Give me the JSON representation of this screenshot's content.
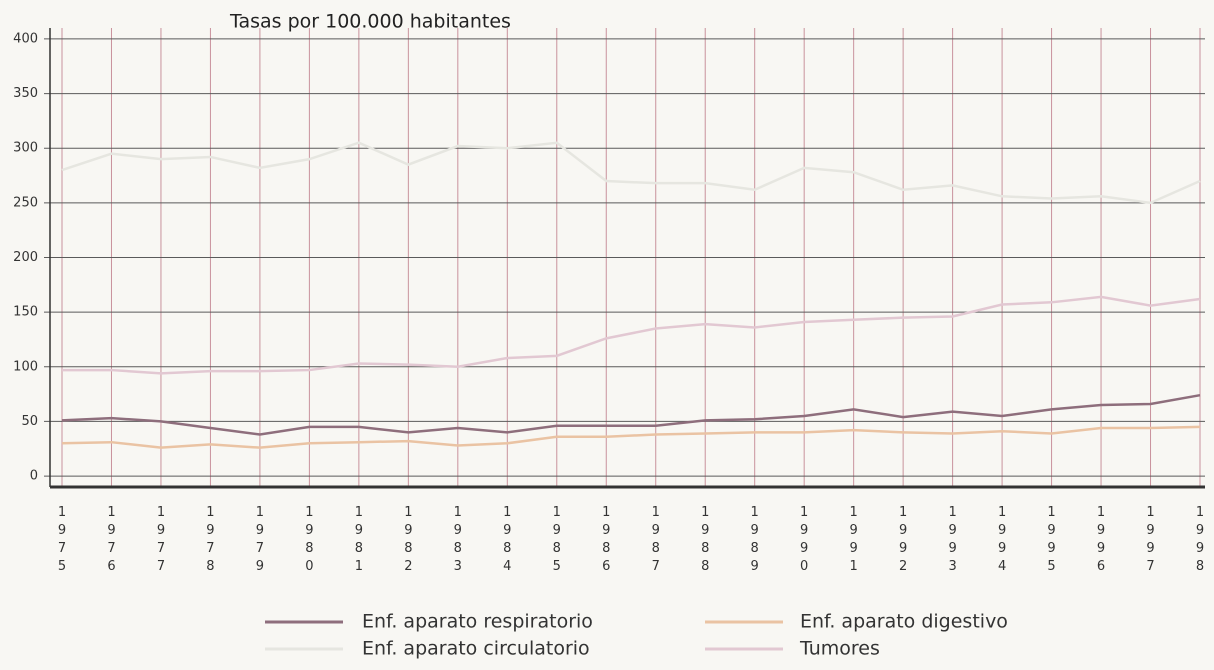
{
  "chart_data": {
    "type": "line",
    "title": "Tasas por 100.000 habitantes",
    "categories": [
      "1975",
      "1976",
      "1977",
      "1978",
      "1979",
      "1980",
      "1981",
      "1982",
      "1983",
      "1984",
      "1985",
      "1986",
      "1987",
      "1988",
      "1989",
      "1990",
      "1991",
      "1992",
      "1993",
      "1994",
      "1995",
      "1996",
      "1997",
      "1998"
    ],
    "series": [
      {
        "name": "Enf. aparato respiratorio",
        "color": "#8e6e7c",
        "values": [
          51,
          53,
          50,
          44,
          38,
          45,
          45,
          40,
          44,
          40,
          46,
          46,
          46,
          51,
          52,
          55,
          61,
          54,
          59,
          55,
          61,
          65,
          66,
          74
        ]
      },
      {
        "name": "Enf. aparato circulatorio",
        "color": "#e6e6e0",
        "values": [
          280,
          295,
          290,
          292,
          282,
          290,
          305,
          285,
          302,
          300,
          305,
          270,
          268,
          268,
          262,
          282,
          278,
          262,
          266,
          256,
          254,
          256,
          250,
          270
        ]
      },
      {
        "name": "Enf. aparato digestivo",
        "color": "#eac3a3",
        "values": [
          30,
          31,
          26,
          29,
          26,
          30,
          31,
          32,
          28,
          30,
          36,
          36,
          38,
          39,
          40,
          40,
          42,
          40,
          39,
          41,
          39,
          44,
          44,
          45
        ]
      },
      {
        "name": "Tumores",
        "color": "#e2c8d2",
        "values": [
          97,
          97,
          94,
          96,
          96,
          97,
          103,
          102,
          100,
          108,
          110,
          126,
          135,
          139,
          136,
          141,
          143,
          145,
          146,
          157,
          159,
          164,
          156,
          162
        ]
      }
    ],
    "ylim": [
      -10,
      410
    ],
    "yticks": [
      0,
      50,
      100,
      150,
      200,
      250,
      300,
      350,
      400
    ],
    "grid": true
  }
}
